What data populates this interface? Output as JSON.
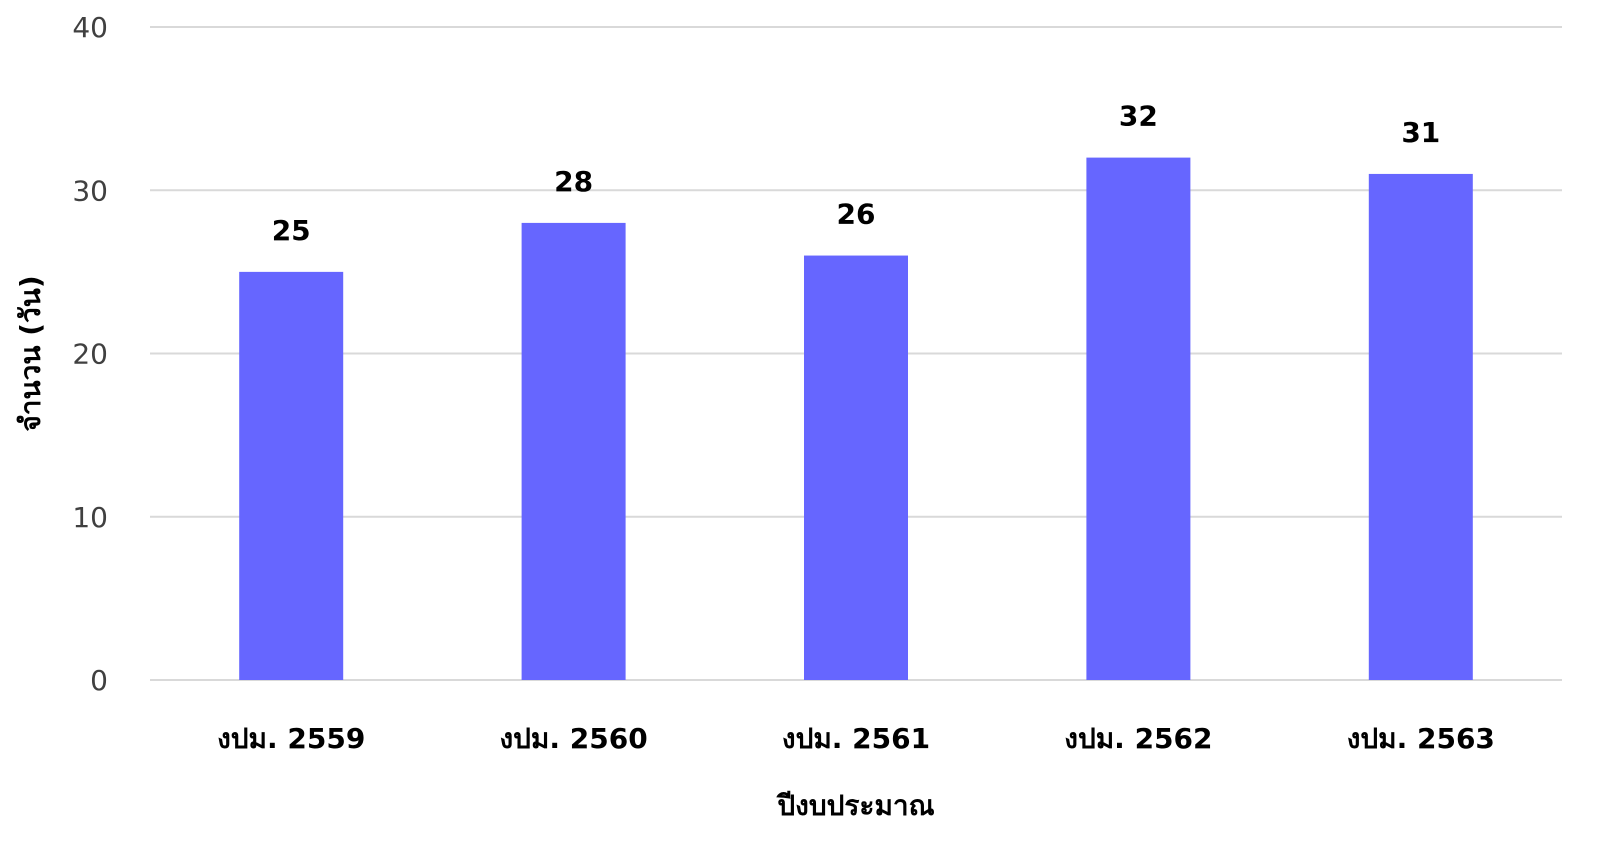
{
  "chart_data": {
    "type": "bar",
    "categories": [
      "งปม. 2559",
      "งปม. 2560",
      "งปม. 2561",
      "งปม. 2562",
      "งปม. 2563"
    ],
    "values": [
      25,
      28,
      26,
      32,
      31
    ],
    "data_labels": [
      "25",
      "28",
      "26",
      "32",
      "31"
    ],
    "xlabel": "ปีงบประมาณ",
    "ylabel": "จำนวน (วัน)",
    "ylim": [
      0,
      40
    ],
    "yticks": [
      0,
      10,
      20,
      30,
      40
    ],
    "ytick_labels": [
      "0",
      "10",
      "20",
      "30",
      "40"
    ],
    "bar_color": "#6666ff",
    "grid": true,
    "legend": "none"
  }
}
